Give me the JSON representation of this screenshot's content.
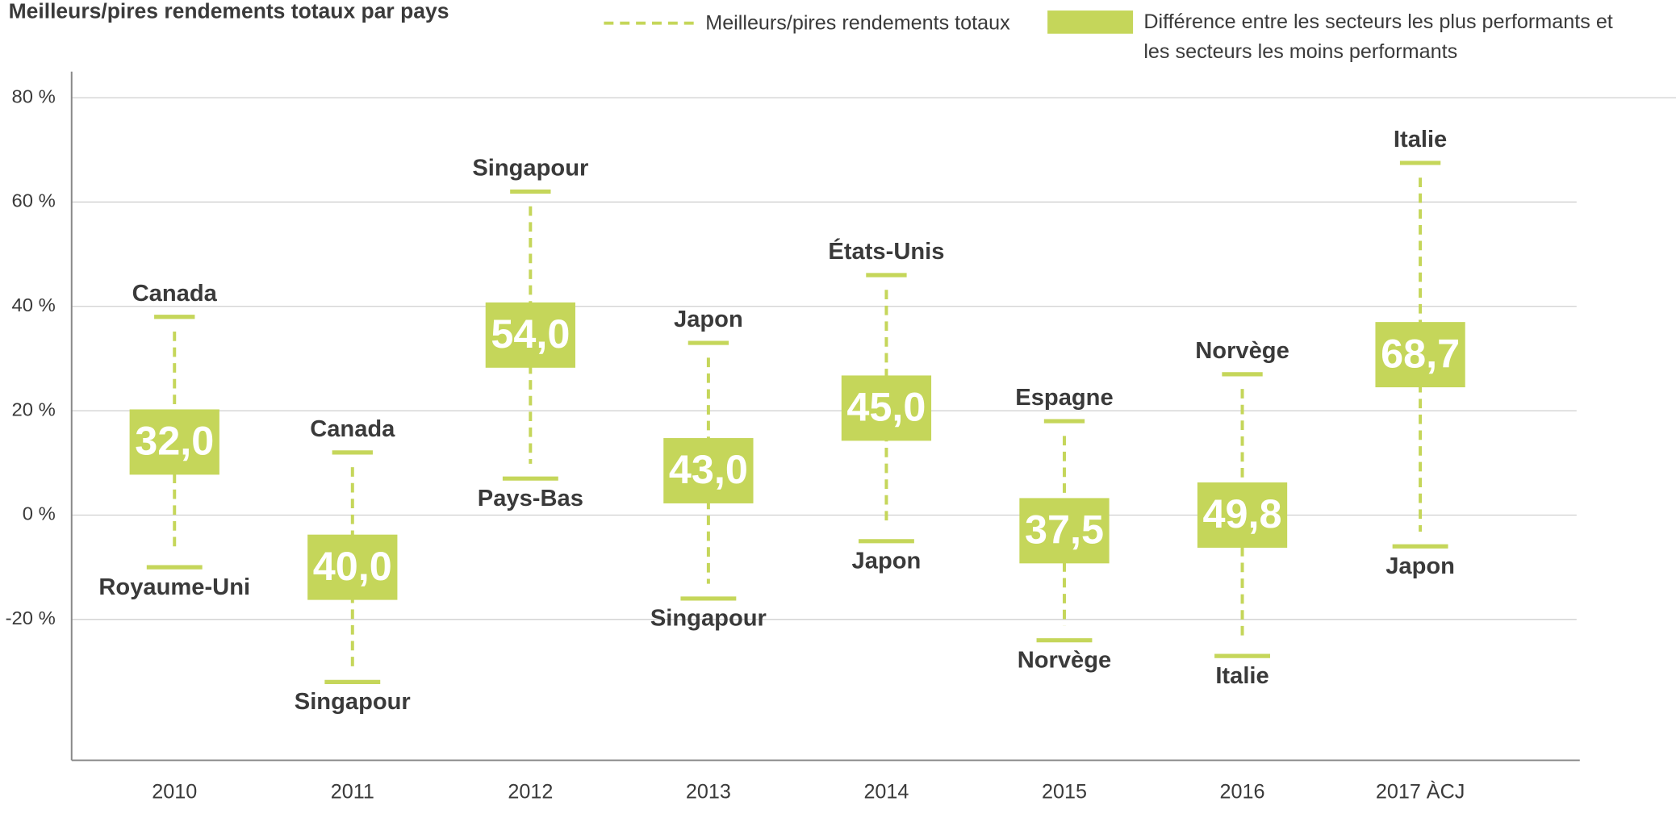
{
  "chart_data": {
    "type": "range",
    "title": "Meilleurs/pires rendements totaux par pays",
    "categories": [
      "2010",
      "2011",
      "2012",
      "2013",
      "2014",
      "2015",
      "2016",
      "2017 ÀCJ"
    ],
    "series": [
      {
        "name": "Meilleurs/pires rendements totaux",
        "color": "#c5d65a",
        "high": [
          38,
          12,
          62,
          33,
          46,
          18,
          27,
          67.5
        ],
        "high_labels": [
          "Canada",
          "Canada",
          "Singapour",
          "Japon",
          "États-Unis",
          "Espagne",
          "Norvège",
          "Italie"
        ],
        "low": [
          -10,
          -32,
          7,
          -16,
          -5,
          -24,
          -27,
          -6
        ],
        "low_labels": [
          "Royaume-Uni",
          "Singapour",
          "Pays-Bas",
          "Singapour",
          "Japon",
          "Norvège",
          "Italie",
          "Japon"
        ]
      },
      {
        "name": "Différence entre les secteurs les plus performants et les secteurs les moins performants",
        "color": "#c5d65a",
        "values": [
          32.0,
          40.0,
          54.0,
          43.0,
          45.0,
          37.5,
          49.8,
          68.7
        ],
        "value_labels": [
          "32,0",
          "40,0",
          "54,0",
          "43,0",
          "45,0",
          "37,5",
          "49,8",
          "68,7"
        ]
      }
    ],
    "ylim": [
      -47,
      85
    ],
    "yticks": [
      {
        "value": 80,
        "label": "80 %"
      },
      {
        "value": 60,
        "label": "60 %"
      },
      {
        "value": 40,
        "label": "40 %"
      },
      {
        "value": 20,
        "label": "20 %"
      },
      {
        "value": 0,
        "label": "0 %"
      },
      {
        "value": -20,
        "label": "-20 %"
      }
    ],
    "grid": true
  }
}
